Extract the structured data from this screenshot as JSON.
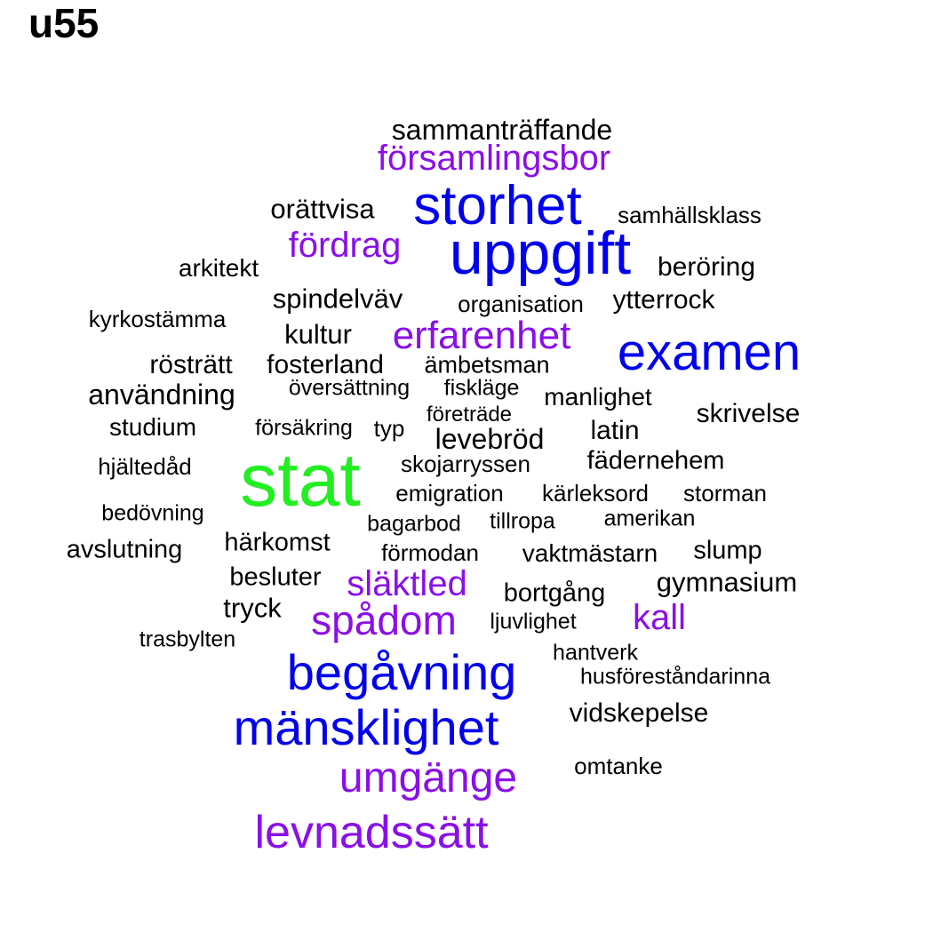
{
  "title": "u55",
  "colors": {
    "largest": "#22ee22",
    "large": "#0000ee",
    "medium": "#8a0fe8",
    "small": "#000000"
  },
  "words": [
    {
      "text": "stat",
      "tier": "largest"
    },
    {
      "text": "storhet",
      "tier": "large"
    },
    {
      "text": "uppgift",
      "tier": "large"
    },
    {
      "text": "examen",
      "tier": "large"
    },
    {
      "text": "begåvning",
      "tier": "large"
    },
    {
      "text": "mänsklighet",
      "tier": "large"
    },
    {
      "text": "församlingsbor",
      "tier": "medium"
    },
    {
      "text": "fördrag",
      "tier": "medium"
    },
    {
      "text": "erfarenhet",
      "tier": "medium"
    },
    {
      "text": "släktled",
      "tier": "medium"
    },
    {
      "text": "spådom",
      "tier": "medium"
    },
    {
      "text": "kall",
      "tier": "medium"
    },
    {
      "text": "umgänge",
      "tier": "medium"
    },
    {
      "text": "levnadssätt",
      "tier": "medium"
    },
    {
      "text": "sammanträffande",
      "tier": "small"
    },
    {
      "text": "orättvisa",
      "tier": "small"
    },
    {
      "text": "samhällsklass",
      "tier": "small"
    },
    {
      "text": "arkitekt",
      "tier": "small"
    },
    {
      "text": "beröring",
      "tier": "small"
    },
    {
      "text": "spindelväv",
      "tier": "small"
    },
    {
      "text": "organisation",
      "tier": "small"
    },
    {
      "text": "ytterrock",
      "tier": "small"
    },
    {
      "text": "kyrkostämma",
      "tier": "small"
    },
    {
      "text": "kultur",
      "tier": "small"
    },
    {
      "text": "rösträtt",
      "tier": "small"
    },
    {
      "text": "fosterland",
      "tier": "small"
    },
    {
      "text": "ämbetsman",
      "tier": "small"
    },
    {
      "text": "användning",
      "tier": "small"
    },
    {
      "text": "översättning",
      "tier": "small"
    },
    {
      "text": "fiskläge",
      "tier": "small"
    },
    {
      "text": "manlighet",
      "tier": "small"
    },
    {
      "text": "företräde",
      "tier": "small"
    },
    {
      "text": "skrivelse",
      "tier": "small"
    },
    {
      "text": "studium",
      "tier": "small"
    },
    {
      "text": "försäkring",
      "tier": "small"
    },
    {
      "text": "typ",
      "tier": "small"
    },
    {
      "text": "levebröd",
      "tier": "small"
    },
    {
      "text": "latin",
      "tier": "small"
    },
    {
      "text": "hjältedåd",
      "tier": "small"
    },
    {
      "text": "skojarryssen",
      "tier": "small"
    },
    {
      "text": "fädernehem",
      "tier": "small"
    },
    {
      "text": "emigration",
      "tier": "small"
    },
    {
      "text": "kärleksord",
      "tier": "small"
    },
    {
      "text": "storman",
      "tier": "small"
    },
    {
      "text": "bedövning",
      "tier": "small"
    },
    {
      "text": "bagarbod",
      "tier": "small"
    },
    {
      "text": "tillropa",
      "tier": "small"
    },
    {
      "text": "amerikan",
      "tier": "small"
    },
    {
      "text": "avslutning",
      "tier": "small"
    },
    {
      "text": "härkomst",
      "tier": "small"
    },
    {
      "text": "förmodan",
      "tier": "small"
    },
    {
      "text": "vaktmästarn",
      "tier": "small"
    },
    {
      "text": "slump",
      "tier": "small"
    },
    {
      "text": "besluter",
      "tier": "small"
    },
    {
      "text": "bortgång",
      "tier": "small"
    },
    {
      "text": "gymnasium",
      "tier": "small"
    },
    {
      "text": "tryck",
      "tier": "small"
    },
    {
      "text": "ljuvlighet",
      "tier": "small"
    },
    {
      "text": "trasbylten",
      "tier": "small"
    },
    {
      "text": "hantverk",
      "tier": "small"
    },
    {
      "text": "husföreståndarinna",
      "tier": "small"
    },
    {
      "text": "vidskepelse",
      "tier": "small"
    },
    {
      "text": "omtanke",
      "tier": "small"
    }
  ]
}
